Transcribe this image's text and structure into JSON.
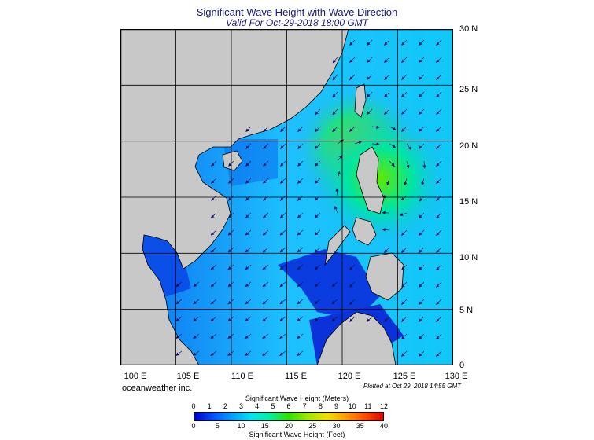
{
  "title": "Significant Wave Height with Wave Direction",
  "subtitle": "Valid For Oct-29-2018 18:00 GMT",
  "lat_labels": [
    "30 N",
    "25 N",
    "20 N",
    "15 N",
    "10 N",
    "5 N",
    "0"
  ],
  "lon_labels": [
    "100 E",
    "105 E",
    "110 E",
    "115 E",
    "120 E",
    "125 E",
    "130 E"
  ],
  "credit": "oceanweather inc.",
  "plotted": "Plotted at Oct 29, 2018 14:55 GMT",
  "colorbar": {
    "meters_title": "Significant Wave Height (Meters)",
    "feet_title": "Significant Wave Height (Feet)",
    "meters_ticks": [
      "0",
      "1",
      "2",
      "3",
      "4",
      "5",
      "6",
      "7",
      "8",
      "9",
      "10",
      "11",
      "12"
    ],
    "feet_ticks": [
      "0",
      "5",
      "10",
      "15",
      "20",
      "25",
      "30",
      "35",
      "40"
    ],
    "colors": [
      "#0000c8",
      "#0050ff",
      "#00a0ff",
      "#00e6f0",
      "#00f0a0",
      "#30e000",
      "#a0e800",
      "#f0e000",
      "#ffa000",
      "#ff5000",
      "#e00000"
    ]
  },
  "colors": {
    "land": "#c8c8c8",
    "ocean_low": "#0a32e6",
    "ocean_mid": "#1eb4ff",
    "ocean_high": "#50e600",
    "title": "#1a1a80"
  }
}
